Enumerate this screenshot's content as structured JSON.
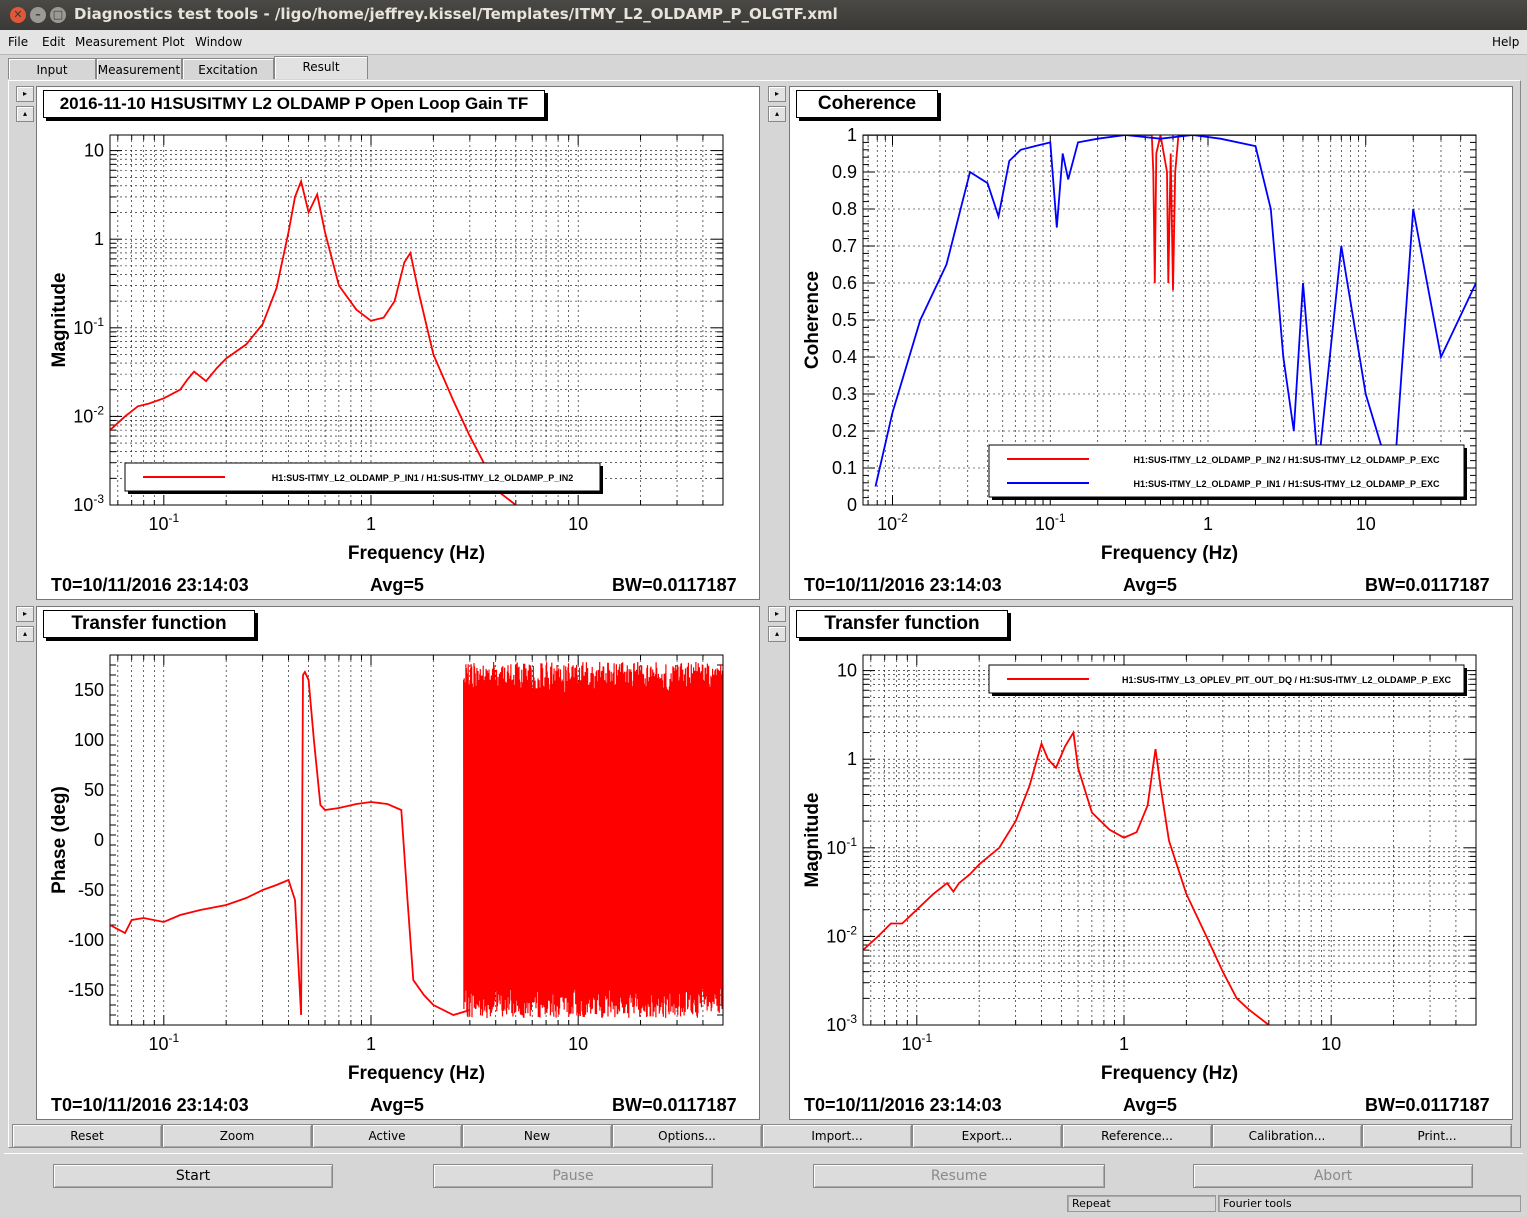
{
  "window": {
    "title": "Diagnostics test tools - /ligo/home/jeffrey.kissel/Templates/ITMY_L2_OLDAMP_P_OLGTF.xml"
  },
  "menu": [
    "File",
    "Edit",
    "Measurement",
    "Plot",
    "Window",
    "Help"
  ],
  "tabs": [
    "Input",
    "Measurement",
    "Excitation",
    "Result"
  ],
  "panels": [
    {
      "title": "2016-11-10 H1SUSITMY L2 OLDAMP P Open Loop Gain TF",
      "status": {
        "t0": "T0=10/11/2016 23:14:03",
        "avg": "Avg=5",
        "bw": "BW=0.0117187"
      }
    },
    {
      "title": "Coherence",
      "status": {
        "t0": "T0=10/11/2016 23:14:03",
        "avg": "Avg=5",
        "bw": "BW=0.0117187"
      }
    },
    {
      "title": "Transfer function",
      "status": {
        "t0": "T0=10/11/2016 23:14:03",
        "avg": "Avg=5",
        "bw": "BW=0.0117187"
      }
    },
    {
      "title": "Transfer function",
      "status": {
        "t0": "T0=10/11/2016 23:14:03",
        "avg": "Avg=5",
        "bw": "BW=0.0117187"
      }
    }
  ],
  "plot_buttons": [
    "Reset",
    "Zoom",
    "Active",
    "New",
    "Options...",
    "Import...",
    "Export...",
    "Reference...",
    "Calibration...",
    "Print..."
  ],
  "control_buttons": {
    "start": "Start",
    "pause": "Pause",
    "resume": "Resume",
    "abort": "Abort"
  },
  "statusbar": {
    "repeat": "Repeat",
    "fourier": "Fourier tools"
  },
  "colors": {
    "red": "#ff0000",
    "blue": "#0000ff"
  },
  "chart_data": [
    {
      "type": "line",
      "title": "2016-11-10 H1SUSITMY L2 OLDAMP P Open Loop Gain TF",
      "xlabel": "Frequency (Hz)",
      "ylabel": "Magnitude",
      "xscale": "log",
      "yscale": "log",
      "xlim": [
        0.055,
        50
      ],
      "ylim": [
        0.001,
        15
      ],
      "xticks": [
        {
          "v": 0.1,
          "b": "10",
          "e": "-1"
        },
        {
          "v": 1,
          "b": "1",
          "e": ""
        },
        {
          "v": 10,
          "b": "10",
          "e": ""
        }
      ],
      "yticks": [
        {
          "v": 0.001,
          "b": "10",
          "e": "-3"
        },
        {
          "v": 0.01,
          "b": "10",
          "e": "-2"
        },
        {
          "v": 0.1,
          "b": "10",
          "e": "-1"
        },
        {
          "v": 1,
          "b": "1",
          "e": ""
        },
        {
          "v": 10,
          "b": "10",
          "e": ""
        }
      ],
      "legend": {
        "position": "bottom-left"
      },
      "series": [
        {
          "name": "H1:SUS-ITMY_L2_OLDAMP_P_IN1 / H1:SUS-ITMY_L2_OLDAMP_P_IN2",
          "color": "#ff0000",
          "x": [
            0.055,
            0.065,
            0.075,
            0.085,
            0.1,
            0.12,
            0.13,
            0.14,
            0.16,
            0.18,
            0.2,
            0.25,
            0.3,
            0.35,
            0.4,
            0.43,
            0.46,
            0.5,
            0.55,
            0.6,
            0.7,
            0.85,
            1.0,
            1.15,
            1.3,
            1.45,
            1.55,
            1.7,
            2.0,
            2.5,
            3.0,
            3.5,
            4.0,
            5.0
          ],
          "y": [
            0.007,
            0.01,
            0.013,
            0.014,
            0.016,
            0.02,
            0.026,
            0.032,
            0.025,
            0.035,
            0.045,
            0.065,
            0.11,
            0.28,
            1.2,
            3.0,
            4.5,
            2.0,
            3.2,
            1.2,
            0.3,
            0.16,
            0.12,
            0.13,
            0.2,
            0.55,
            0.7,
            0.25,
            0.05,
            0.015,
            0.006,
            0.003,
            0.0015,
            0.001
          ]
        }
      ]
    },
    {
      "type": "line",
      "title": "Coherence",
      "xlabel": "Frequency (Hz)",
      "ylabel": "Coherence",
      "xscale": "log",
      "yscale": "linear",
      "xlim": [
        0.0065,
        50
      ],
      "ylim": [
        0,
        1
      ],
      "xticks": [
        {
          "v": 0.01,
          "b": "10",
          "e": "-2"
        },
        {
          "v": 0.1,
          "b": "10",
          "e": "-1"
        },
        {
          "v": 1,
          "b": "1",
          "e": ""
        },
        {
          "v": 10,
          "b": "10",
          "e": ""
        }
      ],
      "yticks": [
        {
          "v": 0,
          "b": "0",
          "e": ""
        },
        {
          "v": 0.1,
          "b": "0.1",
          "e": ""
        },
        {
          "v": 0.2,
          "b": "0.2",
          "e": ""
        },
        {
          "v": 0.3,
          "b": "0.3",
          "e": ""
        },
        {
          "v": 0.4,
          "b": "0.4",
          "e": ""
        },
        {
          "v": 0.5,
          "b": "0.5",
          "e": ""
        },
        {
          "v": 0.6,
          "b": "0.6",
          "e": ""
        },
        {
          "v": 0.7,
          "b": "0.7",
          "e": ""
        },
        {
          "v": 0.8,
          "b": "0.8",
          "e": ""
        },
        {
          "v": 0.9,
          "b": "0.9",
          "e": ""
        },
        {
          "v": 1,
          "b": "1",
          "e": ""
        }
      ],
      "legend": {
        "position": "bottom-right"
      },
      "series": [
        {
          "name": "H1:SUS-ITMY_L2_OLDAMP_P_IN2 / H1:SUS-ITMY_L2_OLDAMP_P_EXC",
          "color": "#ff0000",
          "x": [
            0.0065,
            0.44,
            0.45,
            0.46,
            0.47,
            0.5,
            0.55,
            0.56,
            0.58,
            0.6,
            0.62,
            0.65,
            0.7,
            50
          ],
          "y": [
            1,
            1,
            0.9,
            0.6,
            0.95,
            1,
            0.9,
            0.6,
            0.95,
            0.58,
            0.9,
            1,
            1,
            1
          ]
        },
        {
          "name": "H1:SUS-ITMY_L2_OLDAMP_P_IN1 / H1:SUS-ITMY_L2_OLDAMP_P_EXC",
          "color": "#0000ff",
          "x": [
            0.0078,
            0.01,
            0.015,
            0.022,
            0.031,
            0.04,
            0.047,
            0.055,
            0.065,
            0.08,
            0.1,
            0.11,
            0.12,
            0.13,
            0.15,
            0.2,
            0.3,
            0.5,
            0.8,
            1.2,
            2.0,
            2.5,
            3.0,
            3.5,
            4.0,
            5.0,
            7.0,
            10,
            15,
            20,
            30,
            50
          ],
          "y": [
            0.05,
            0.25,
            0.5,
            0.65,
            0.9,
            0.87,
            0.78,
            0.93,
            0.96,
            0.97,
            0.98,
            0.75,
            0.95,
            0.88,
            0.98,
            0.99,
            1.0,
            0.99,
            1.0,
            0.99,
            0.97,
            0.8,
            0.4,
            0.2,
            0.6,
            0.1,
            0.7,
            0.3,
            0.05,
            0.8,
            0.4,
            0.6
          ]
        }
      ]
    },
    {
      "type": "line",
      "title": "Transfer function",
      "xlabel": "Frequency (Hz)",
      "ylabel": "Phase (deg)",
      "xscale": "log",
      "yscale": "linear",
      "xlim": [
        0.055,
        50
      ],
      "ylim": [
        -185,
        185
      ],
      "xticks": [
        {
          "v": 0.1,
          "b": "10",
          "e": "-1"
        },
        {
          "v": 1,
          "b": "1",
          "e": ""
        },
        {
          "v": 10,
          "b": "10",
          "e": ""
        }
      ],
      "yticks": [
        {
          "v": -150,
          "b": "-150",
          "e": ""
        },
        {
          "v": -100,
          "b": "-100",
          "e": ""
        },
        {
          "v": -50,
          "b": "-50",
          "e": ""
        },
        {
          "v": 0,
          "b": "0",
          "e": ""
        },
        {
          "v": 50,
          "b": "50",
          "e": ""
        },
        {
          "v": 100,
          "b": "100",
          "e": ""
        },
        {
          "v": 150,
          "b": "150",
          "e": ""
        }
      ],
      "series": [
        {
          "color": "#ff0000",
          "x": [
            0.055,
            0.065,
            0.07,
            0.08,
            0.1,
            0.12,
            0.15,
            0.2,
            0.25,
            0.3,
            0.35,
            0.4,
            0.43,
            0.46,
            0.47,
            0.48,
            0.5,
            0.53,
            0.57,
            0.6,
            0.7,
            0.85,
            1.0,
            1.2,
            1.4,
            1.5,
            1.6,
            1.8,
            2.0,
            2.5,
            3.0
          ],
          "y": [
            -85,
            -93,
            -80,
            -78,
            -82,
            -75,
            -70,
            -65,
            -58,
            -50,
            -45,
            -40,
            -60,
            -175,
            165,
            168,
            160,
            100,
            35,
            30,
            32,
            36,
            38,
            36,
            30,
            -60,
            -140,
            -155,
            -165,
            -175,
            -170
          ]
        }
      ],
      "noise_band": {
        "x_from": 2.8,
        "x_to": 50,
        "y_min": -178,
        "y_max": 178
      }
    },
    {
      "type": "line",
      "title": "Transfer function",
      "xlabel": "Frequency (Hz)",
      "ylabel": "Magnitude",
      "xscale": "log",
      "yscale": "log",
      "xlim": [
        0.055,
        50
      ],
      "ylim": [
        0.001,
        15
      ],
      "xticks": [
        {
          "v": 0.1,
          "b": "10",
          "e": "-1"
        },
        {
          "v": 1,
          "b": "1",
          "e": ""
        },
        {
          "v": 10,
          "b": "10",
          "e": ""
        }
      ],
      "yticks": [
        {
          "v": 0.001,
          "b": "10",
          "e": "-3"
        },
        {
          "v": 0.01,
          "b": "10",
          "e": "-2"
        },
        {
          "v": 0.1,
          "b": "10",
          "e": "-1"
        },
        {
          "v": 1,
          "b": "1",
          "e": ""
        },
        {
          "v": 10,
          "b": "10",
          "e": ""
        }
      ],
      "legend": {
        "position": "top-right"
      },
      "series": [
        {
          "name": "H1:SUS-ITMY_L3_OPLEV_PIT_OUT_DQ / H1:SUS-ITMY_L2_OLDAMP_P_EXC",
          "color": "#ff0000",
          "x": [
            0.055,
            0.065,
            0.075,
            0.085,
            0.1,
            0.12,
            0.14,
            0.15,
            0.16,
            0.18,
            0.2,
            0.25,
            0.3,
            0.35,
            0.4,
            0.43,
            0.47,
            0.52,
            0.57,
            0.6,
            0.7,
            0.85,
            1.0,
            1.15,
            1.3,
            1.42,
            1.5,
            1.65,
            2.0,
            2.5,
            3.0,
            3.5,
            4.0,
            5.0
          ],
          "y": [
            0.007,
            0.01,
            0.014,
            0.014,
            0.02,
            0.03,
            0.04,
            0.032,
            0.04,
            0.05,
            0.065,
            0.1,
            0.2,
            0.5,
            1.5,
            1.0,
            0.8,
            1.4,
            2.0,
            0.8,
            0.25,
            0.16,
            0.13,
            0.15,
            0.3,
            1.3,
            0.5,
            0.12,
            0.03,
            0.01,
            0.004,
            0.002,
            0.0015,
            0.001
          ]
        }
      ]
    }
  ]
}
